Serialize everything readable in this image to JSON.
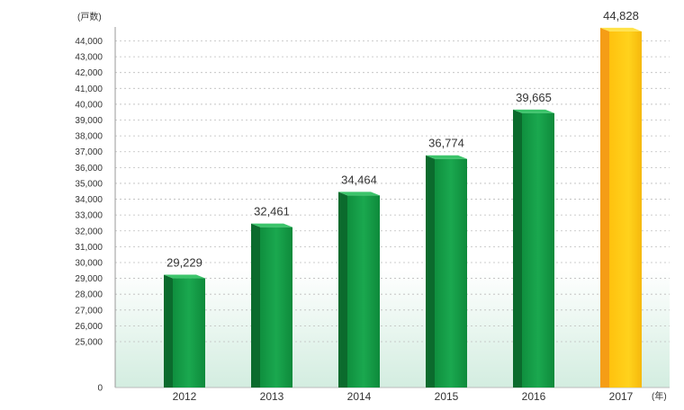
{
  "chart_data": {
    "type": "bar",
    "categories": [
      "2012",
      "2013",
      "2014",
      "2015",
      "2016",
      "2017"
    ],
    "values": [
      29229,
      32461,
      34464,
      36774,
      39665,
      44828
    ],
    "value_labels": [
      "29,229",
      "32,461",
      "34,464",
      "36,774",
      "39,665",
      "44,828"
    ],
    "y_unit": "(戸数)",
    "x_unit": "(年)",
    "yticks": [
      0,
      25000,
      26000,
      27000,
      28000,
      29000,
      30000,
      31000,
      32000,
      33000,
      34000,
      35000,
      36000,
      37000,
      38000,
      39000,
      40000,
      41000,
      42000,
      43000,
      44000
    ],
    "ytick_labels": [
      "0",
      "25,000",
      "26,000",
      "27,000",
      "28,000",
      "29,000",
      "30,000",
      "31,000",
      "32,000",
      "33,000",
      "34,000",
      "35,000",
      "36,000",
      "37,000",
      "38,000",
      "39,000",
      "40,000",
      "41,000",
      "42,000",
      "43,000",
      "44,000"
    ],
    "axis_break": true,
    "grid": true,
    "bar_colors": [
      "#15a04a",
      "#15a04a",
      "#15a04a",
      "#15a04a",
      "#15a04a",
      "#ffc20e"
    ]
  }
}
